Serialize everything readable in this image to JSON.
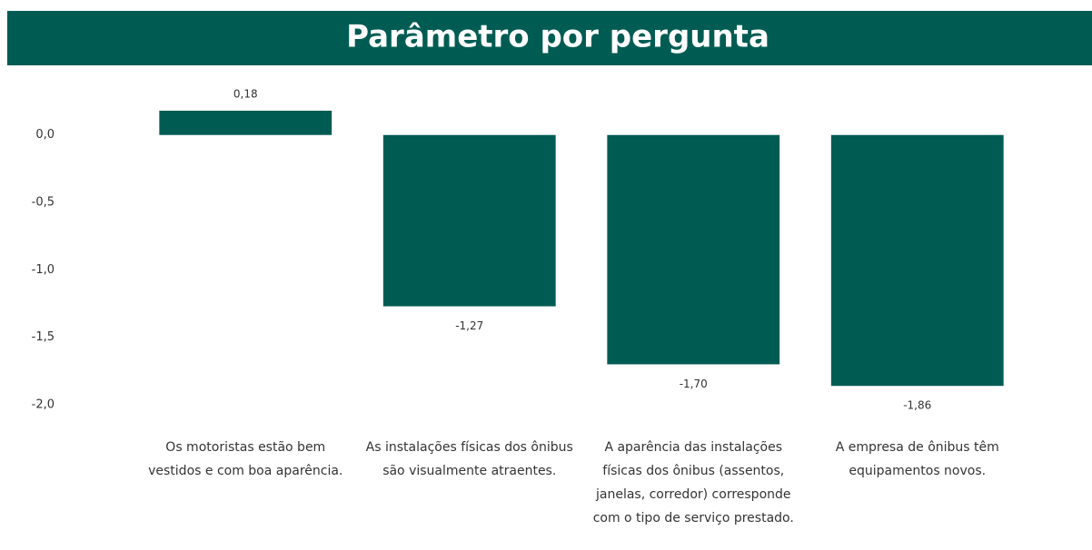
{
  "chart_data": {
    "type": "bar",
    "title": "Parâmetro por pergunta",
    "categories": [
      "Os motoristas estão bem vestidos e com boa aparência.",
      "As instalações físicas dos ônibus são visualmente atraentes.",
      "A aparência das instalações físicas dos ônibus (assentos, janelas, corredor) corresponde com o tipo de serviço prestado.",
      "A empresa de ônibus têm equipamentos novos."
    ],
    "values": [
      0.18,
      -1.27,
      -1.7,
      -1.86
    ],
    "value_labels": [
      "0,18",
      "-1,27",
      "-1,70",
      "-1,86"
    ],
    "color": "#005c53",
    "ylim": [
      -2.0,
      0.2
    ],
    "yticks": [
      {
        "value": 0,
        "label": "0,0"
      },
      {
        "value": -0.5,
        "label": "-0,5"
      },
      {
        "value": -1.0,
        "label": "-1,0"
      },
      {
        "value": -1.5,
        "label": "-1,5"
      },
      {
        "value": -2.0,
        "label": "-2,0"
      }
    ],
    "grid": false
  }
}
